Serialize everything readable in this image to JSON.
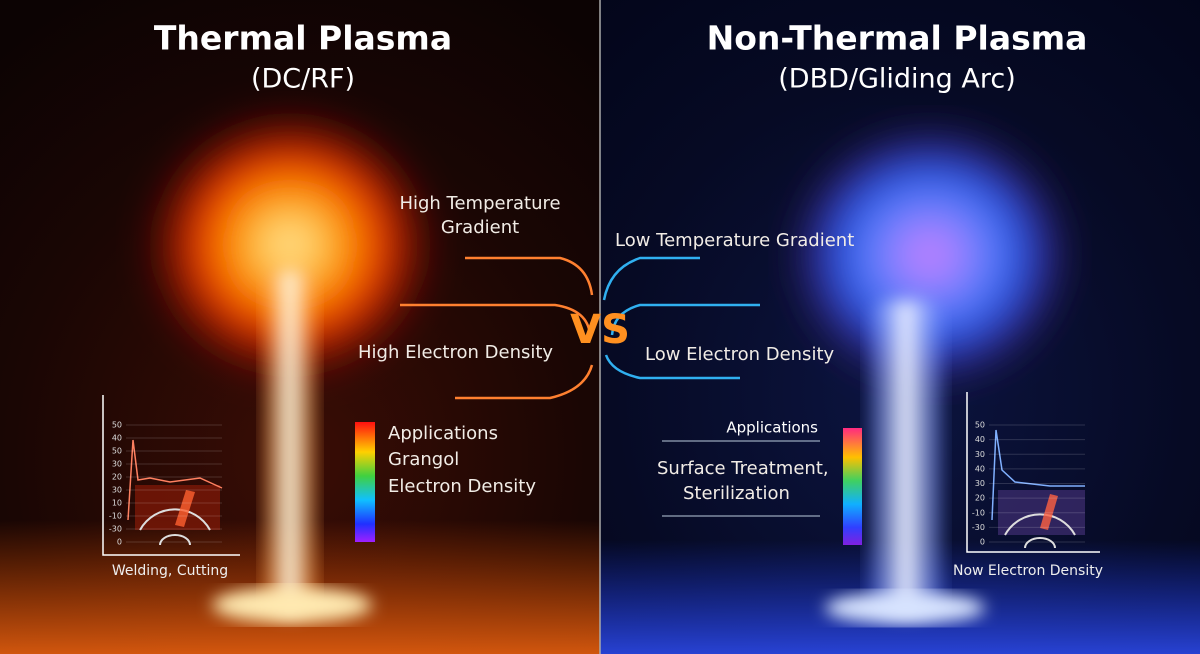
{
  "left": {
    "title": "Thermal Plasma",
    "subtitle": "(DC/RF)",
    "gradient_label": [
      "High Temperature",
      "Gradient"
    ],
    "density_label": "High Electron Density",
    "legend_lines": [
      "Applications",
      "Grangol",
      "Electron Density"
    ],
    "chart_ticks": [
      "50",
      "40",
      "50",
      "30",
      "20",
      "30",
      "10",
      "-10",
      "-30",
      "0"
    ],
    "chart_caption": "Welding, Cutting"
  },
  "vs": "VS",
  "right": {
    "title": "Non-Thermal Plasma",
    "subtitle": "(DBD/Gliding Arc)",
    "gradient_label": "Low Temperature Gradient",
    "density_label": "Low Electron Density",
    "applications_heading": "Applications",
    "applications_lines": [
      "Surface Treatment,",
      "Sterilization"
    ],
    "chart_ticks": [
      "50",
      "40",
      "30",
      "40",
      "30",
      "20",
      "-10",
      "-30",
      "0"
    ],
    "chart_caption": "Now Electron Density"
  }
}
